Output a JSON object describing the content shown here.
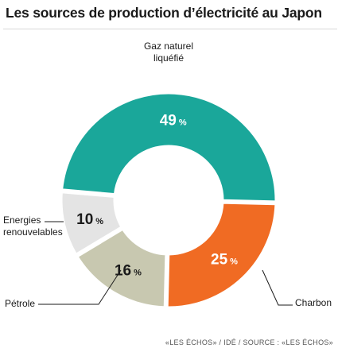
{
  "header": {
    "title": "Les sources de production d’électricité au Japon"
  },
  "footer": {
    "source": "«LES ÉCHOS» / IDÉ / SOURCE : «LES ÉCHOS»"
  },
  "chart_data": {
    "type": "pie",
    "variant": "donut",
    "title": "Les sources de production d’électricité au Japon",
    "unit": "%",
    "slices": [
      {
        "name": "Gaz naturel liquéfié",
        "label_lines": [
          "Gaz naturel",
          "liquéfié"
        ],
        "value": 49,
        "color": "#1aa79a",
        "value_color": "#ffffff"
      },
      {
        "name": "Charbon",
        "label_lines": [
          "Charbon"
        ],
        "value": 25,
        "color": "#f06b23",
        "value_color": "#ffffff"
      },
      {
        "name": "Pétrole",
        "label_lines": [
          "Pétrole"
        ],
        "value": 16,
        "color": "#c8c8b0",
        "value_color": "#1a1a1a"
      },
      {
        "name": "Energies renouvelables",
        "label_lines": [
          "Energies",
          "renouvelables"
        ],
        "value": 10,
        "color": "#e4e4e4",
        "value_color": "#1a1a1a"
      }
    ],
    "legend": "none"
  }
}
